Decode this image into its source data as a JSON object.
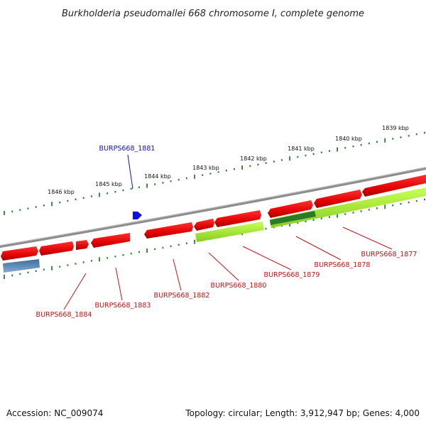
{
  "title": "Burkholderia pseudomallei 668 chromosome I, complete genome",
  "footer": {
    "accession": "Accession: NC_009074",
    "summary": "Topology: circular; Length: 3,912,947 bp; Genes: 4,000"
  },
  "colors": {
    "backbone": "#8a8a8a",
    "tick": "#2e7d2e",
    "red_gene": "#ee1111",
    "green_gene": "#aaee22",
    "dark_green_gene": "#2a7a2a",
    "blue_gene": "#3f78aa",
    "marker": "#1010dd",
    "red_label": "#cc1111",
    "blue_label": "#1111bb"
  },
  "kbp_labels": [
    "1846 kbp",
    "1845 kbp",
    "1844 kbp",
    "1843 kbp",
    "1842 kbp",
    "1841 kbp",
    "1840 kbp",
    "1839 kbp"
  ],
  "labels": {
    "marker": "BURPS668_1881",
    "g1877": "BURPS668_1877",
    "g1878": "BURPS668_1878",
    "g1879": "BURPS668_1879",
    "g1880": "BURPS668_1880",
    "g1882": "BURPS668_1882",
    "g1883": "BURPS668_1883",
    "g1884": "BURPS668_1884"
  }
}
